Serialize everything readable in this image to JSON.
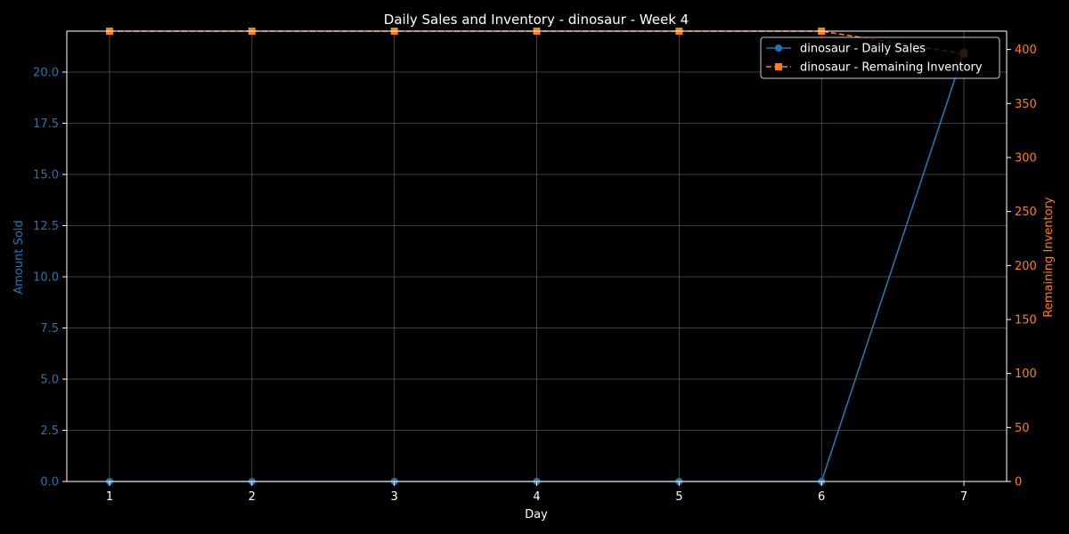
{
  "chart_data": {
    "type": "line",
    "title": "Daily Sales and Inventory - dinosaur - Week 4",
    "xlabel": "Day",
    "ylabel_left": "Amount Sold",
    "ylabel_right": "Remaining Inventory",
    "x": [
      1,
      2,
      3,
      4,
      5,
      6,
      7
    ],
    "x_ticks": [
      "1",
      "2",
      "3",
      "4",
      "5",
      "6",
      "7"
    ],
    "xlim": [
      0.7,
      7.3
    ],
    "ylim_left": [
      0,
      22
    ],
    "ylim_right": [
      0,
      417
    ],
    "y_ticks_left": [
      "0.0",
      "2.5",
      "5.0",
      "7.5",
      "10.0",
      "12.5",
      "15.0",
      "17.5",
      "20.0"
    ],
    "y_tick_values_left": [
      0,
      2.5,
      5,
      7.5,
      10,
      12.5,
      15,
      17.5,
      20
    ],
    "y_ticks_right": [
      "0",
      "50",
      "100",
      "150",
      "200",
      "250",
      "300",
      "350",
      "400"
    ],
    "y_tick_values_right": [
      0,
      50,
      100,
      150,
      200,
      250,
      300,
      350,
      400
    ],
    "grid": true,
    "legend_position": "top-right",
    "series": [
      {
        "name": "dinosaur - Daily Sales",
        "axis": "left",
        "color": "#1f77b4",
        "marker": "circle",
        "linestyle": "solid",
        "values": [
          0,
          0,
          0,
          0,
          0,
          0,
          21
        ]
      },
      {
        "name": "dinosaur - Remaining Inventory",
        "axis": "right",
        "color": "#ff7f0e",
        "marker": "square",
        "linestyle": "dashed",
        "values": [
          417,
          417,
          417,
          417,
          417,
          417,
          396
        ]
      }
    ],
    "colors": {
      "background": "#000000",
      "axes": "#ffffff",
      "grid": "#555555",
      "left_axis": "#1f77b4",
      "right_axis": "#ff7f0e"
    }
  }
}
